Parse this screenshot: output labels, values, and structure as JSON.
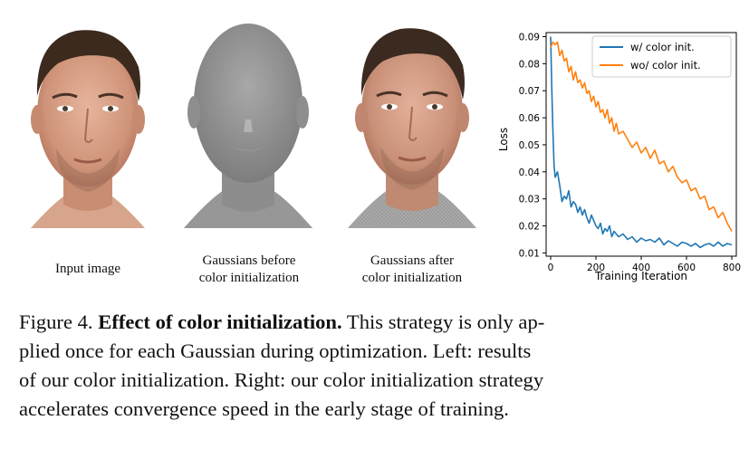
{
  "figure": {
    "labels": {
      "input": "Input image",
      "before_line1": "Gaussians before",
      "before_line2": "color initialization",
      "after_line1": "Gaussians  after",
      "after_line2": "color initialization"
    },
    "caption": {
      "prefix": "Figure 4.",
      "bold": "Effect of color initialization.",
      "line1_rest": "This strategy is only ap-",
      "line2": "plied once for each Gaussian during optimization.  Left: results",
      "line3": "of our color initialization.  Right: our color initialization strategy",
      "line4": "accelerates convergence speed in the early stage of training."
    }
  },
  "chart_data": {
    "type": "line",
    "title": "",
    "xlabel": "Training Iteration",
    "ylabel": "Loss",
    "xlim": [
      -20,
      820
    ],
    "ylim": [
      0.0088,
      0.0915
    ],
    "xticks": [
      0,
      200,
      400,
      600,
      800
    ],
    "yticks": [
      0.01,
      0.02,
      0.03,
      0.04,
      0.05,
      0.06,
      0.07,
      0.08,
      0.09
    ],
    "ytick_labels": [
      "0.01",
      "0.02",
      "0.03",
      "0.04",
      "0.05",
      "0.06",
      "0.07",
      "0.08",
      "0.09"
    ],
    "legend_position": "top-right",
    "series": [
      {
        "name": "w/ color init.",
        "color": "#1f77b4",
        "x": [
          0,
          5,
          10,
          15,
          20,
          30,
          40,
          50,
          60,
          70,
          80,
          90,
          100,
          110,
          120,
          130,
          140,
          150,
          160,
          170,
          180,
          190,
          200,
          210,
          220,
          230,
          240,
          250,
          260,
          270,
          280,
          290,
          300,
          320,
          340,
          360,
          380,
          400,
          420,
          440,
          460,
          480,
          500,
          520,
          540,
          560,
          580,
          600,
          620,
          640,
          660,
          680,
          700,
          720,
          740,
          760,
          780,
          800
        ],
        "y": [
          0.09,
          0.07,
          0.055,
          0.042,
          0.038,
          0.04,
          0.035,
          0.029,
          0.031,
          0.03,
          0.033,
          0.027,
          0.029,
          0.028,
          0.025,
          0.027,
          0.024,
          0.026,
          0.023,
          0.021,
          0.024,
          0.022,
          0.02,
          0.019,
          0.021,
          0.017,
          0.019,
          0.018,
          0.02,
          0.016,
          0.018,
          0.017,
          0.016,
          0.017,
          0.015,
          0.016,
          0.014,
          0.0155,
          0.0145,
          0.015,
          0.014,
          0.0155,
          0.013,
          0.0145,
          0.0135,
          0.0125,
          0.014,
          0.0135,
          0.0125,
          0.0135,
          0.012,
          0.013,
          0.0135,
          0.0125,
          0.014,
          0.0125,
          0.0135,
          0.013
        ]
      },
      {
        "name": "wo/ color init.",
        "color": "#ff7f0e",
        "x": [
          0,
          10,
          20,
          30,
          40,
          50,
          60,
          70,
          80,
          90,
          100,
          110,
          120,
          130,
          140,
          150,
          160,
          170,
          180,
          190,
          200,
          210,
          220,
          230,
          240,
          250,
          260,
          270,
          280,
          290,
          300,
          320,
          340,
          360,
          380,
          400,
          420,
          440,
          460,
          480,
          500,
          520,
          540,
          560,
          580,
          600,
          620,
          640,
          660,
          680,
          700,
          720,
          740,
          760,
          780,
          800
        ],
        "y": [
          0.086,
          0.088,
          0.087,
          0.088,
          0.083,
          0.085,
          0.081,
          0.082,
          0.077,
          0.079,
          0.074,
          0.077,
          0.073,
          0.074,
          0.071,
          0.073,
          0.069,
          0.07,
          0.066,
          0.068,
          0.064,
          0.066,
          0.062,
          0.063,
          0.06,
          0.063,
          0.058,
          0.06,
          0.055,
          0.058,
          0.054,
          0.055,
          0.052,
          0.049,
          0.051,
          0.047,
          0.049,
          0.045,
          0.048,
          0.043,
          0.044,
          0.04,
          0.042,
          0.038,
          0.036,
          0.037,
          0.033,
          0.034,
          0.03,
          0.031,
          0.026,
          0.027,
          0.023,
          0.025,
          0.021,
          0.018
        ]
      }
    ]
  }
}
